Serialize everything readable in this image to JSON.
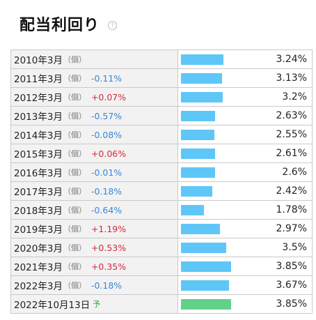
{
  "header": {
    "title": "配当利回り",
    "help_label": "?"
  },
  "chart_data": {
    "type": "bar",
    "categories": [
      "2010年3月",
      "2011年3月",
      "2012年3月",
      "2013年3月",
      "2014年3月",
      "2015年3月",
      "2016年3月",
      "2017年3月",
      "2018年3月",
      "2019年3月",
      "2020年3月",
      "2021年3月",
      "2022年3月",
      "2022年10月13日"
    ],
    "values": [
      3.24,
      3.13,
      3.2,
      2.63,
      2.55,
      2.61,
      2.6,
      2.42,
      1.78,
      2.97,
      3.5,
      3.85,
      3.67,
      3.85
    ],
    "max_value": 3.85
  },
  "rows": [
    {
      "period": "2010年3月",
      "unit": "（個）",
      "yoy": "",
      "value": 3.24,
      "value_text": "3.24%"
    },
    {
      "period": "2011年3月",
      "unit": "（個）",
      "yoy": "-0.11%",
      "value": 3.13,
      "value_text": "3.13%"
    },
    {
      "period": "2012年3月",
      "unit": "（個）",
      "yoy": "+0.07%",
      "value": 3.2,
      "value_text": "3.2%"
    },
    {
      "period": "2013年3月",
      "unit": "（個）",
      "yoy": "-0.57%",
      "value": 2.63,
      "value_text": "2.63%"
    },
    {
      "period": "2014年3月",
      "unit": "（個）",
      "yoy": "-0.08%",
      "value": 2.55,
      "value_text": "2.55%"
    },
    {
      "period": "2015年3月",
      "unit": "（個）",
      "yoy": "+0.06%",
      "value": 2.61,
      "value_text": "2.61%"
    },
    {
      "period": "2016年3月",
      "unit": "（個）",
      "yoy": "-0.01%",
      "value": 2.6,
      "value_text": "2.6%"
    },
    {
      "period": "2017年3月",
      "unit": "（個）",
      "yoy": "-0.18%",
      "value": 2.42,
      "value_text": "2.42%"
    },
    {
      "period": "2018年3月",
      "unit": "（個）",
      "yoy": "-0.64%",
      "value": 1.78,
      "value_text": "1.78%"
    },
    {
      "period": "2019年3月",
      "unit": "（個）",
      "yoy": "+1.19%",
      "value": 2.97,
      "value_text": "2.97%"
    },
    {
      "period": "2020年3月",
      "unit": "（個）",
      "yoy": "+0.53%",
      "value": 3.5,
      "value_text": "3.5%"
    },
    {
      "period": "2021年3月",
      "unit": "（個）",
      "yoy": "+0.35%",
      "value": 3.85,
      "value_text": "3.85%"
    },
    {
      "period": "2022年3月",
      "unit": "（個）",
      "yoy": "-0.18%",
      "value": 3.67,
      "value_text": "3.67%"
    },
    {
      "period": "2022年10月13日",
      "unit": "",
      "yoy": "予",
      "value": 3.85,
      "value_text": "3.85%",
      "forecast": true
    }
  ],
  "colors": {
    "bar_actual": "#5fc6f8",
    "bar_forecast": "#62d18a",
    "negative": "#3a86d4",
    "positive": "#d6283a",
    "forecast_label": "#2f9e3e"
  }
}
